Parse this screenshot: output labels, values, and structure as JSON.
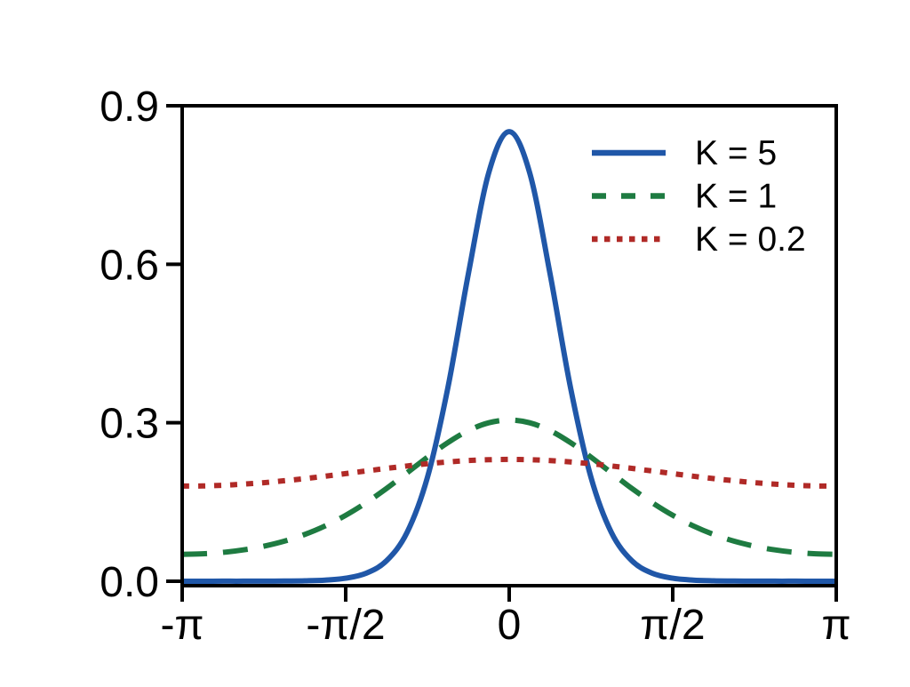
{
  "figure": {
    "background": "#ffffff",
    "axis_color": "#000000",
    "text_color": "#000000"
  },
  "chart_data": {
    "type": "line",
    "title": "",
    "xlabel": "",
    "ylabel": "",
    "grid": false,
    "frame": "full box",
    "legend_position": "upper-right-inside",
    "xlim_over_pi": [
      -1,
      1
    ],
    "ylim": [
      0,
      0.9
    ],
    "x_ticks": [
      {
        "pos": -1.0,
        "label": "-π"
      },
      {
        "pos": -0.5,
        "label": "-π/2"
      },
      {
        "pos": 0.0,
        "label": "0"
      },
      {
        "pos": 0.5,
        "label": "π/2"
      },
      {
        "pos": 1.0,
        "label": "π"
      }
    ],
    "y_ticks": [
      {
        "pos": 0.0,
        "label": "0.0"
      },
      {
        "pos": 0.3,
        "label": "0.3"
      },
      {
        "pos": 0.6,
        "label": "0.6"
      },
      {
        "pos": 0.9,
        "label": "0.9"
      }
    ],
    "x_over_pi": [
      -1,
      -0.9375,
      -0.875,
      -0.8125,
      -0.75,
      -0.6875,
      -0.625,
      -0.5625,
      -0.5,
      -0.4375,
      -0.375,
      -0.3125,
      -0.25,
      -0.1875,
      -0.125,
      -0.0625,
      0,
      0.0625,
      0.125,
      0.1875,
      0.25,
      0.3125,
      0.375,
      0.4375,
      0.5,
      0.5625,
      0.625,
      0.6875,
      0.75,
      0.8125,
      0.875,
      0.9375,
      1
    ],
    "series": [
      {
        "name": "K = 5",
        "color": "#2057a8",
        "line_style": "solid",
        "peak_value": 0.851,
        "y": [
          0.0,
          0.0,
          0.0001,
          0.0001,
          0.0002,
          0.0004,
          0.0008,
          0.0022,
          0.0057,
          0.0152,
          0.0389,
          0.0922,
          0.1967,
          0.3664,
          0.5816,
          0.7733,
          0.851,
          0.7733,
          0.5816,
          0.3664,
          0.1967,
          0.0922,
          0.0389,
          0.0152,
          0.0057,
          0.0022,
          0.0008,
          0.0004,
          0.0002,
          0.0001,
          0.0001,
          0.0,
          0.0
        ]
      },
      {
        "name": "K = 1",
        "color": "#1e7b41",
        "line_style": "dashed",
        "peak_value": 0.305,
        "y": [
          0.051,
          0.0519,
          0.0546,
          0.0593,
          0.0663,
          0.0759,
          0.0886,
          0.1048,
          0.1248,
          0.1486,
          0.1757,
          0.2051,
          0.2348,
          0.2624,
          0.2851,
          0.2999,
          0.3051,
          0.2999,
          0.2851,
          0.2624,
          0.2348,
          0.2051,
          0.1757,
          0.1486,
          0.1248,
          0.1048,
          0.0886,
          0.0759,
          0.0663,
          0.0593,
          0.0546,
          0.0519,
          0.051
        ]
      },
      {
        "name": "K = 0.2",
        "color": "#b02a27",
        "line_style": "dotted",
        "peak_value": 0.231,
        "y": [
          0.1802,
          0.1804,
          0.1817,
          0.1838,
          0.1866,
          0.1902,
          0.1943,
          0.1988,
          0.2037,
          0.2087,
          0.2136,
          0.2182,
          0.2224,
          0.2258,
          0.2284,
          0.23,
          0.2306,
          0.23,
          0.2284,
          0.2258,
          0.2224,
          0.2182,
          0.2136,
          0.2087,
          0.2037,
          0.1988,
          0.1943,
          0.1902,
          0.1866,
          0.1838,
          0.1817,
          0.1804,
          0.1802
        ]
      }
    ]
  }
}
